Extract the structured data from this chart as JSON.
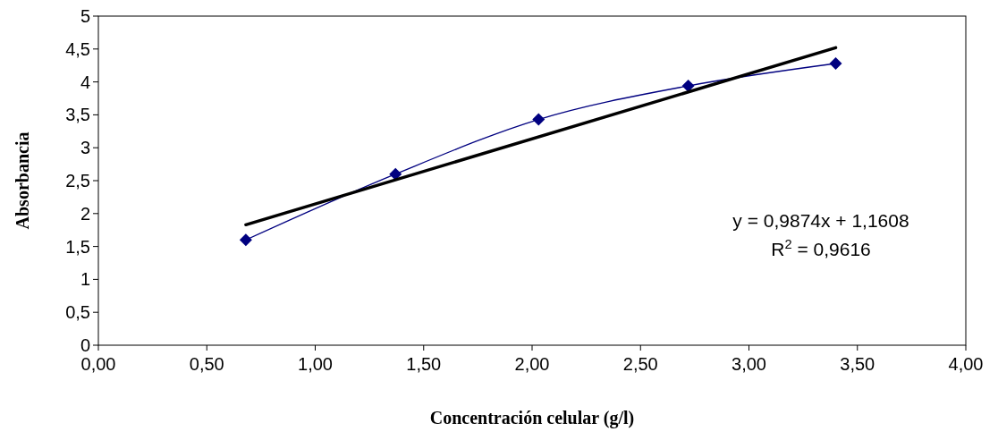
{
  "chart_data": {
    "type": "line",
    "xlabel": "Concentración celular (g/l)",
    "ylabel": "Absorbancia",
    "xlim": [
      0,
      4
    ],
    "xticks": [
      {
        "value": 0,
        "label": "0,00"
      },
      {
        "value": 0.5,
        "label": "0,50"
      },
      {
        "value": 1,
        "label": "1,00"
      },
      {
        "value": 1.5,
        "label": "1,50"
      },
      {
        "value": 2,
        "label": "2,00"
      },
      {
        "value": 2.5,
        "label": "2,50"
      },
      {
        "value": 3,
        "label": "3,00"
      },
      {
        "value": 3.5,
        "label": "3,50"
      },
      {
        "value": 4,
        "label": "4,00"
      }
    ],
    "ylim": [
      0,
      5
    ],
    "yticks": [
      0,
      {
        "value": 0.5,
        "label": "0,5"
      },
      1,
      {
        "value": 1.5,
        "label": "1,5"
      },
      2,
      {
        "value": 2.5,
        "label": "2,5"
      },
      3,
      {
        "value": 3.5,
        "label": "3,5"
      },
      4,
      {
        "value": 4.5,
        "label": "4,5"
      },
      5
    ],
    "grid": false,
    "marker": "diamond",
    "line_style": "solid",
    "series": [
      {
        "color": "#000080",
        "x": [
          0.68,
          1.37,
          2.03,
          2.72,
          3.4
        ],
        "values": [
          1.6,
          2.6,
          3.43,
          3.94,
          4.28
        ]
      },
      {
        "color": "#000000",
        "marker": "none",
        "x": [
          0.68,
          3.4
        ],
        "values": [
          1.83,
          4.52
        ]
      }
    ],
    "annotations": [
      "y = 0,9874x + 1,1608",
      "R$^{2}$ = 0,9616"
    ]
  }
}
